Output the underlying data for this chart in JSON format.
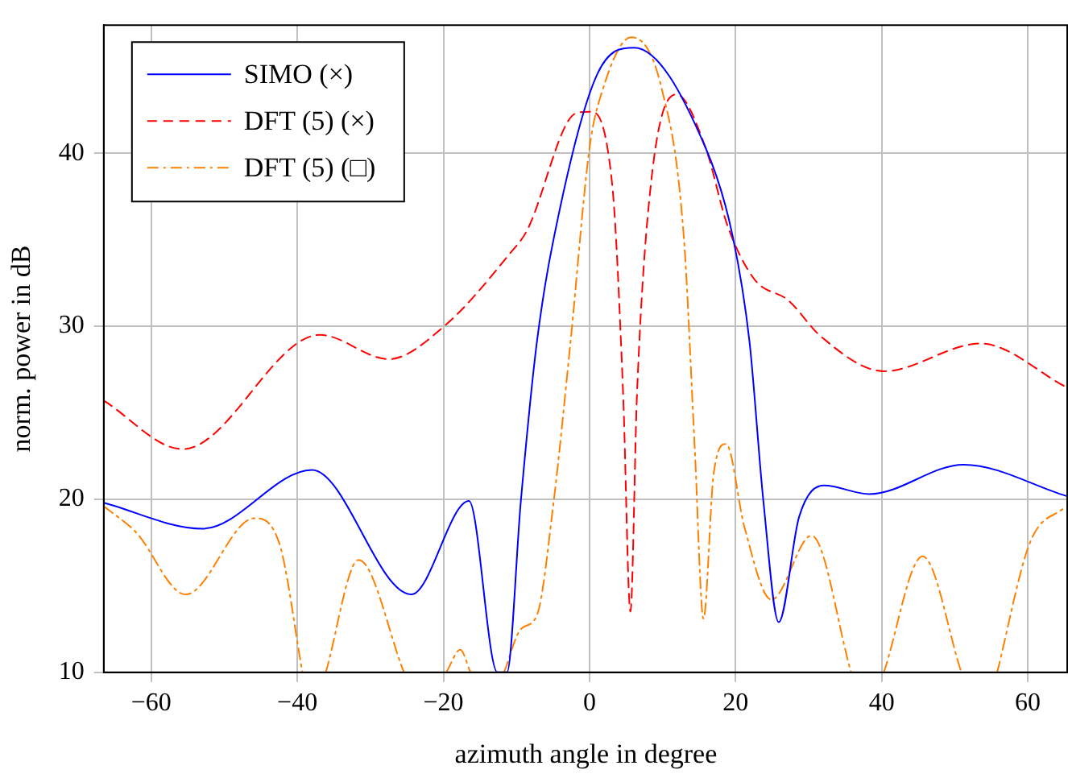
{
  "chart_data": {
    "type": "line",
    "xlabel": "azimuth angle in degree",
    "ylabel": "norm. power in dB",
    "xlim": [
      -66.5,
      65.5
    ],
    "ylim": [
      10,
      47.4
    ],
    "xticks": [
      -60,
      -40,
      -20,
      0,
      20,
      40,
      60
    ],
    "yticks": [
      10,
      20,
      30,
      40
    ],
    "grid": true,
    "legend": "top left",
    "marker": "none",
    "series": [
      {
        "name": "SIMO (×)",
        "color": "#0000ff",
        "line_style": "solid",
        "x": [
          -66.5,
          -53,
          -38,
          -24.4,
          -16.5,
          -12.6,
          -11.3,
          -9.4,
          -7.2,
          -4.1,
          1.1,
          6.1,
          15.9,
          19.6,
          21.9,
          23.8,
          25.9,
          28.7,
          32.1,
          38.3,
          51.2,
          65.2
        ],
        "values": [
          19.8,
          18.3,
          21.7,
          14.5,
          19.9,
          10,
          10,
          19.9,
          29.1,
          36.7,
          44.6,
          46.1,
          40.3,
          35.2,
          29.1,
          19.9,
          12.9,
          19.0,
          20.8,
          20.3,
          22.0,
          20.2
        ]
      },
      {
        "name": "DFT (5) (×)",
        "color": "#ff0000",
        "line_style": "dashed",
        "x": [
          -66.5,
          -55.7,
          -36.9,
          -27.5,
          -19.9,
          -10.9,
          -8.6,
          -1.9,
          0,
          3.1,
          4.6,
          5.6,
          6.5,
          8.4,
          11.9,
          15.9,
          18.9,
          22.6,
          27.2,
          31.7,
          40.3,
          53.5,
          65.2
        ],
        "values": [
          25.7,
          22.9,
          29.5,
          28.1,
          30.0,
          34.2,
          35.5,
          42.3,
          42.4,
          38.2,
          26.1,
          13.5,
          26.1,
          38.2,
          43.4,
          40.3,
          35.8,
          32.7,
          31.5,
          29.4,
          27.4,
          29.0,
          26.5
        ]
      },
      {
        "name": "DFT (5) (□)",
        "color": "#ff8000",
        "line_style": "dashdot",
        "x": [
          -66.5,
          -62.1,
          -55.3,
          -45.9,
          -42.5,
          -39.3,
          -37.7,
          -36.1,
          -31.6,
          -25.4,
          -22.5,
          -19.6,
          -17.7,
          -16.3,
          -14,
          -11.7,
          -9.4,
          -7.2,
          -4.9,
          -2.6,
          0,
          1.6,
          5.7,
          9.9,
          12.9,
          14.4,
          15.6,
          17.0,
          18.7,
          21.2,
          24.9,
          30.4,
          35.8,
          38,
          40.3,
          45.6,
          50.9,
          53.3,
          55.8,
          60.3,
          65.2
        ],
        "values": [
          19.6,
          18.1,
          14.5,
          18.9,
          17.5,
          10,
          null,
          10,
          16.5,
          10,
          null,
          10,
          11.3,
          10,
          null,
          10,
          12.5,
          13.3,
          19.9,
          29.1,
          40.3,
          43.4,
          46.7,
          43.7,
          35.2,
          23.0,
          13.1,
          21.5,
          23.2,
          18.4,
          14.2,
          17.9,
          10,
          null,
          10,
          16.7,
          10,
          null,
          10,
          17.5,
          19.6
        ]
      }
    ]
  }
}
